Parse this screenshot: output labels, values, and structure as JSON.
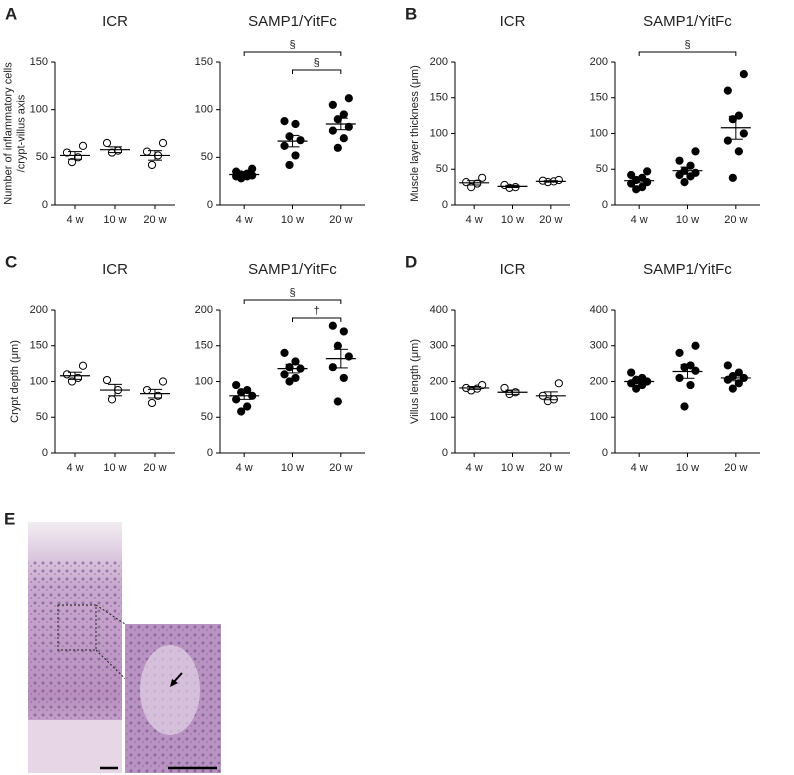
{
  "chart_data": [
    {
      "type": "dot",
      "panel": "A",
      "title": "ICR",
      "ylabel": [
        "Number of inflammatory cells",
        "/crypt-villus axis"
      ],
      "categories": [
        "4 w",
        "10 w",
        "20 w"
      ],
      "groups": [
        [
          45,
          50,
          55,
          62
        ],
        [
          55,
          57,
          65
        ],
        [
          42,
          52,
          56,
          65
        ]
      ],
      "means": [
        52,
        58,
        52
      ],
      "sems": [
        4,
        3,
        5
      ],
      "ylim": [
        0,
        150
      ],
      "yticks": [
        0,
        50,
        100,
        150
      ],
      "marker": "open"
    },
    {
      "type": "dot",
      "title": "SAMP1/YitFc",
      "categories": [
        "4 w",
        "10 w",
        "20 w"
      ],
      "groups": [
        [
          28,
          30,
          30,
          31,
          32,
          33,
          35,
          38
        ],
        [
          42,
          52,
          62,
          68,
          72,
          85,
          88
        ],
        [
          60,
          70,
          78,
          82,
          90,
          95,
          105,
          112
        ]
      ],
      "means": [
        32,
        67,
        85
      ],
      "sems": [
        1.5,
        6,
        6
      ],
      "ylim": [
        0,
        150
      ],
      "yticks": [
        0,
        50,
        100,
        150
      ],
      "marker": "filled",
      "brackets": [
        {
          "from": 0,
          "to": 2,
          "label": "§"
        },
        {
          "from": 1,
          "to": 2,
          "label": "§"
        }
      ]
    },
    {
      "type": "dot",
      "panel": "B",
      "title": "ICR",
      "ylabel": [
        "Muscle layer thickness (μm)"
      ],
      "categories": [
        "4 w",
        "10 w",
        "20 w"
      ],
      "groups": [
        [
          25,
          30,
          32,
          38
        ],
        [
          24,
          25,
          28
        ],
        [
          32,
          33,
          34,
          35
        ]
      ],
      "means": [
        31,
        26,
        33
      ],
      "sems": [
        3,
        1.5,
        1
      ],
      "ylim": [
        0,
        200
      ],
      "yticks": [
        0,
        50,
        100,
        150,
        200
      ],
      "marker": "open"
    },
    {
      "type": "dot",
      "title": "SAMP1/YitFc",
      "categories": [
        "4 w",
        "10 w",
        "20 w"
      ],
      "groups": [
        [
          22,
          25,
          30,
          32,
          35,
          38,
          42,
          47
        ],
        [
          32,
          40,
          42,
          45,
          48,
          55,
          62,
          75
        ],
        [
          38,
          75,
          90,
          100,
          120,
          125,
          160,
          183
        ]
      ],
      "means": [
        34,
        48,
        108
      ],
      "sems": [
        3,
        5,
        16
      ],
      "ylim": [
        0,
        200
      ],
      "yticks": [
        0,
        50,
        100,
        150,
        200
      ],
      "marker": "filled",
      "brackets": [
        {
          "from": 0,
          "to": 2,
          "label": "§"
        }
      ]
    },
    {
      "type": "dot",
      "panel": "C",
      "title": "ICR",
      "ylabel": [
        "Crypt depth (μm)"
      ],
      "categories": [
        "4 w",
        "10 w",
        "20 w"
      ],
      "groups": [
        [
          100,
          105,
          110,
          122
        ],
        [
          75,
          88,
          102
        ],
        [
          70,
          80,
          88,
          100
        ]
      ],
      "means": [
        108,
        88,
        83
      ],
      "sems": [
        5,
        8,
        6
      ],
      "ylim": [
        0,
        200
      ],
      "yticks": [
        0,
        50,
        100,
        150,
        200
      ],
      "marker": "open"
    },
    {
      "type": "dot",
      "title": "SAMP1/YitFc",
      "categories": [
        "4 w",
        "10 w",
        "20 w"
      ],
      "groups": [
        [
          58,
          65,
          75,
          80,
          85,
          88,
          95
        ],
        [
          100,
          105,
          110,
          118,
          120,
          128,
          140
        ],
        [
          72,
          105,
          120,
          135,
          150,
          170,
          178
        ]
      ],
      "means": [
        80,
        118,
        132
      ],
      "sems": [
        5,
        6,
        13
      ],
      "ylim": [
        0,
        200
      ],
      "yticks": [
        0,
        50,
        100,
        150,
        200
      ],
      "marker": "filled",
      "brackets": [
        {
          "from": 0,
          "to": 2,
          "label": "§"
        },
        {
          "from": 1,
          "to": 2,
          "label": "†"
        }
      ]
    },
    {
      "type": "dot",
      "panel": "D",
      "title": "ICR",
      "ylabel": [
        "Villus length (μm)"
      ],
      "categories": [
        "4 w",
        "10 w",
        "20 w"
      ],
      "groups": [
        [
          175,
          180,
          182,
          190
        ],
        [
          165,
          170,
          182
        ],
        [
          145,
          150,
          160,
          195
        ]
      ],
      "means": [
        182,
        170,
        160
      ],
      "sems": [
        4,
        6,
        11
      ],
      "ylim": [
        0,
        400
      ],
      "yticks": [
        0,
        100,
        200,
        300,
        400
      ],
      "marker": "open"
    },
    {
      "type": "dot",
      "title": "SAMP1/YitFc",
      "categories": [
        "4 w",
        "10 w",
        "20 w"
      ],
      "groups": [
        [
          180,
          190,
          195,
          200,
          205,
          210,
          225
        ],
        [
          130,
          190,
          210,
          230,
          240,
          245,
          280,
          300
        ],
        [
          180,
          195,
          205,
          210,
          215,
          225,
          245
        ]
      ],
      "means": [
        200,
        228,
        210
      ],
      "sems": [
        6,
        19,
        8
      ],
      "ylim": [
        0,
        400
      ],
      "yticks": [
        0,
        100,
        200,
        300,
        400
      ],
      "marker": "filled"
    }
  ],
  "figure": {
    "panel_e": "E"
  }
}
